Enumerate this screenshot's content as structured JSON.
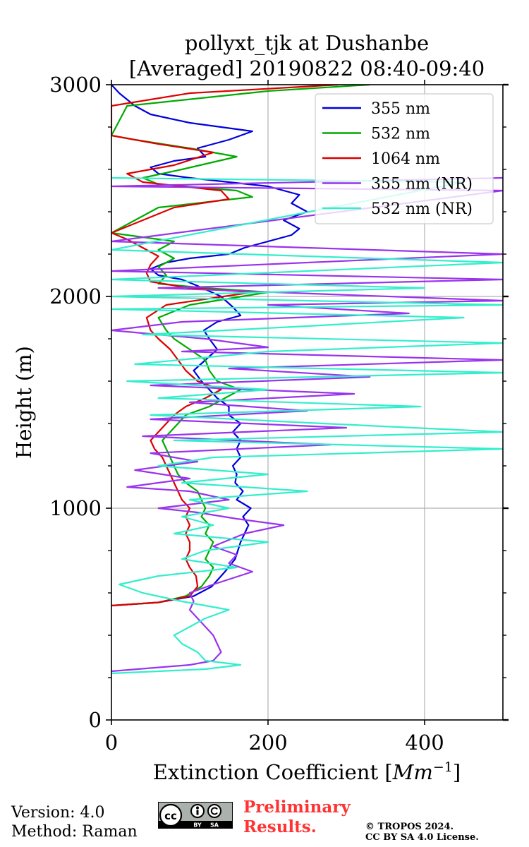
{
  "chart_data": {
    "type": "line",
    "title_line1": "pollyxt_tjk at Dushanbe",
    "title_line2": "[Averaged] 20190822 08:40-09:40",
    "xlabel": "Extinction Coefficient [",
    "xlabel_unit": "Mm",
    "xlabel_exp": "−1",
    "xlabel_close": "]",
    "ylabel": "Height (m)",
    "xlim": [
      0,
      500
    ],
    "ylim": [
      0,
      3000
    ],
    "xticks": [
      0,
      200,
      400
    ],
    "xtick_labels": [
      "0",
      "200",
      "400"
    ],
    "yticks": [
      0,
      1000,
      2000,
      3000
    ],
    "ytick_labels": [
      "0",
      "1000",
      "2000",
      "3000"
    ],
    "grid": true,
    "legend_position": "top-right",
    "series": [
      {
        "name": "355 nm",
        "color": "#0000dd",
        "points": [
          [
            0,
            540
          ],
          [
            60,
            555
          ],
          [
            105,
            585
          ],
          [
            128,
            630
          ],
          [
            145,
            700
          ],
          [
            158,
            760
          ],
          [
            165,
            840
          ],
          [
            170,
            880
          ],
          [
            175,
            920
          ],
          [
            168,
            960
          ],
          [
            178,
            1000
          ],
          [
            160,
            1040
          ],
          [
            168,
            1080
          ],
          [
            158,
            1120
          ],
          [
            160,
            1160
          ],
          [
            155,
            1200
          ],
          [
            165,
            1240
          ],
          [
            160,
            1280
          ],
          [
            165,
            1320
          ],
          [
            155,
            1360
          ],
          [
            165,
            1400
          ],
          [
            150,
            1440
          ],
          [
            150,
            1480
          ],
          [
            135,
            1520
          ],
          [
            125,
            1560
          ],
          [
            115,
            1600
          ],
          [
            105,
            1650
          ],
          [
            120,
            1700
          ],
          [
            135,
            1750
          ],
          [
            125,
            1800
          ],
          [
            118,
            1840
          ],
          [
            135,
            1880
          ],
          [
            165,
            1910
          ],
          [
            155,
            1950
          ],
          [
            140,
            2000
          ],
          [
            110,
            2050
          ],
          [
            90,
            2080
          ],
          [
            60,
            2100
          ],
          [
            50,
            2130
          ],
          [
            70,
            2160
          ],
          [
            100,
            2180
          ],
          [
            150,
            2200
          ],
          [
            170,
            2230
          ],
          [
            200,
            2260
          ],
          [
            230,
            2290
          ],
          [
            240,
            2320
          ],
          [
            220,
            2360
          ],
          [
            250,
            2400
          ],
          [
            230,
            2440
          ],
          [
            240,
            2480
          ],
          [
            200,
            2520
          ],
          [
            150,
            2540
          ],
          [
            100,
            2560
          ],
          [
            60,
            2580
          ],
          [
            50,
            2610
          ],
          [
            80,
            2640
          ],
          [
            120,
            2660
          ],
          [
            110,
            2700
          ],
          [
            150,
            2740
          ],
          [
            180,
            2780
          ],
          [
            100,
            2820
          ],
          [
            50,
            2860
          ],
          [
            30,
            2900
          ],
          [
            20,
            2930
          ],
          [
            10,
            2960
          ],
          [
            0,
            3000
          ]
        ]
      },
      {
        "name": "532 nm",
        "color": "#00aa00",
        "points": [
          [
            0,
            540
          ],
          [
            60,
            555
          ],
          [
            95,
            585
          ],
          [
            115,
            630
          ],
          [
            125,
            680
          ],
          [
            130,
            720
          ],
          [
            120,
            760
          ],
          [
            125,
            800
          ],
          [
            130,
            840
          ],
          [
            120,
            880
          ],
          [
            125,
            920
          ],
          [
            115,
            960
          ],
          [
            120,
            1000
          ],
          [
            115,
            1040
          ],
          [
            110,
            1080
          ],
          [
            95,
            1120
          ],
          [
            85,
            1160
          ],
          [
            80,
            1200
          ],
          [
            75,
            1240
          ],
          [
            70,
            1280
          ],
          [
            65,
            1320
          ],
          [
            75,
            1360
          ],
          [
            85,
            1400
          ],
          [
            95,
            1440
          ],
          [
            125,
            1480
          ],
          [
            145,
            1520
          ],
          [
            165,
            1560
          ],
          [
            135,
            1600
          ],
          [
            125,
            1650
          ],
          [
            120,
            1700
          ],
          [
            100,
            1750
          ],
          [
            80,
            1800
          ],
          [
            70,
            1840
          ],
          [
            60,
            1900
          ],
          [
            100,
            1960
          ],
          [
            200,
            2020
          ],
          [
            120,
            2040
          ],
          [
            60,
            2060
          ],
          [
            70,
            2100
          ],
          [
            60,
            2140
          ],
          [
            80,
            2180
          ],
          [
            60,
            2220
          ],
          [
            80,
            2260
          ],
          [
            20,
            2290
          ],
          [
            0,
            2300
          ],
          [
            60,
            2420
          ],
          [
            180,
            2470
          ],
          [
            160,
            2500
          ],
          [
            60,
            2530
          ],
          [
            40,
            2560
          ],
          [
            90,
            2600
          ],
          [
            160,
            2660
          ],
          [
            100,
            2700
          ],
          [
            30,
            2740
          ],
          [
            0,
            2760
          ],
          [
            20,
            2900
          ],
          [
            200,
            2970
          ],
          [
            330,
            3000
          ]
        ]
      },
      {
        "name": "1064 nm",
        "color": "#dd0000",
        "points": [
          [
            0,
            540
          ],
          [
            60,
            555
          ],
          [
            100,
            585
          ],
          [
            110,
            630
          ],
          [
            108,
            680
          ],
          [
            100,
            720
          ],
          [
            95,
            760
          ],
          [
            100,
            800
          ],
          [
            100,
            840
          ],
          [
            95,
            880
          ],
          [
            100,
            920
          ],
          [
            95,
            960
          ],
          [
            100,
            1000
          ],
          [
            90,
            1040
          ],
          [
            85,
            1080
          ],
          [
            80,
            1120
          ],
          [
            75,
            1160
          ],
          [
            70,
            1200
          ],
          [
            65,
            1240
          ],
          [
            55,
            1280
          ],
          [
            50,
            1320
          ],
          [
            60,
            1360
          ],
          [
            70,
            1400
          ],
          [
            80,
            1440
          ],
          [
            95,
            1480
          ],
          [
            120,
            1520
          ],
          [
            140,
            1560
          ],
          [
            110,
            1600
          ],
          [
            95,
            1650
          ],
          [
            85,
            1700
          ],
          [
            75,
            1750
          ],
          [
            60,
            1800
          ],
          [
            50,
            1840
          ],
          [
            45,
            1900
          ],
          [
            70,
            1960
          ],
          [
            180,
            2020
          ],
          [
            100,
            2040
          ],
          [
            50,
            2070
          ],
          [
            45,
            2110
          ],
          [
            50,
            2150
          ],
          [
            60,
            2190
          ],
          [
            40,
            2230
          ],
          [
            20,
            2270
          ],
          [
            0,
            2300
          ],
          [
            80,
            2420
          ],
          [
            150,
            2460
          ],
          [
            140,
            2500
          ],
          [
            40,
            2540
          ],
          [
            20,
            2580
          ],
          [
            80,
            2620
          ],
          [
            130,
            2680
          ],
          [
            60,
            2720
          ],
          [
            0,
            2760
          ],
          [
            0,
            2900
          ],
          [
            100,
            2960
          ],
          [
            290,
            3000
          ]
        ]
      },
      {
        "name": "355 nm (NR)",
        "color": "#9933ee",
        "points": [
          [
            0,
            230
          ],
          [
            100,
            260
          ],
          [
            130,
            280
          ],
          [
            140,
            320
          ],
          [
            135,
            360
          ],
          [
            130,
            400
          ],
          [
            120,
            440
          ],
          [
            110,
            480
          ],
          [
            100,
            520
          ],
          [
            105,
            560
          ],
          [
            100,
            600
          ],
          [
            130,
            640
          ],
          [
            180,
            700
          ],
          [
            150,
            740
          ],
          [
            160,
            780
          ],
          [
            130,
            820
          ],
          [
            170,
            880
          ],
          [
            220,
            920
          ],
          [
            160,
            950
          ],
          [
            110,
            980
          ],
          [
            60,
            1000
          ],
          [
            150,
            1040
          ],
          [
            100,
            1080
          ],
          [
            20,
            1100
          ],
          [
            100,
            1140
          ],
          [
            30,
            1180
          ],
          [
            110,
            1220
          ],
          [
            50,
            1260
          ],
          [
            280,
            1300
          ],
          [
            40,
            1340
          ],
          [
            300,
            1380
          ],
          [
            50,
            1420
          ],
          [
            250,
            1460
          ],
          [
            100,
            1500
          ],
          [
            310,
            1540
          ],
          [
            50,
            1580
          ],
          [
            330,
            1620
          ],
          [
            150,
            1660
          ],
          [
            500,
            1700
          ],
          [
            90,
            1740
          ],
          [
            200,
            1760
          ],
          [
            120,
            1800
          ],
          [
            0,
            1840
          ],
          [
            90,
            1880
          ],
          [
            380,
            1920
          ],
          [
            200,
            1960
          ],
          [
            500,
            1980
          ],
          [
            60,
            2040
          ],
          [
            500,
            2080
          ],
          [
            0,
            2120
          ],
          [
            500,
            2200
          ],
          [
            0,
            2260
          ],
          [
            500,
            2500
          ],
          [
            0,
            2520
          ],
          [
            500,
            2560
          ]
        ]
      },
      {
        "name": "532 nm (NR)",
        "color": "#33eecc",
        "points": [
          [
            0,
            220
          ],
          [
            120,
            240
          ],
          [
            165,
            260
          ],
          [
            120,
            280
          ],
          [
            110,
            320
          ],
          [
            90,
            360
          ],
          [
            80,
            400
          ],
          [
            100,
            440
          ],
          [
            120,
            480
          ],
          [
            150,
            520
          ],
          [
            90,
            560
          ],
          [
            40,
            600
          ],
          [
            10,
            640
          ],
          [
            60,
            680
          ],
          [
            160,
            720
          ],
          [
            90,
            760
          ],
          [
            120,
            800
          ],
          [
            200,
            840
          ],
          [
            80,
            880
          ],
          [
            130,
            920
          ],
          [
            90,
            960
          ],
          [
            150,
            1000
          ],
          [
            100,
            1040
          ],
          [
            250,
            1080
          ],
          [
            90,
            1120
          ],
          [
            200,
            1160
          ],
          [
            60,
            1200
          ],
          [
            130,
            1240
          ],
          [
            500,
            1280
          ],
          [
            80,
            1320
          ],
          [
            500,
            1360
          ],
          [
            270,
            1400
          ],
          [
            50,
            1440
          ],
          [
            395,
            1480
          ],
          [
            60,
            1520
          ],
          [
            200,
            1560
          ],
          [
            20,
            1600
          ],
          [
            500,
            1640
          ],
          [
            30,
            1680
          ],
          [
            200,
            1740
          ],
          [
            500,
            1780
          ],
          [
            40,
            1820
          ],
          [
            250,
            1860
          ],
          [
            450,
            1900
          ],
          [
            0,
            1940
          ],
          [
            500,
            1960
          ],
          [
            0,
            2000
          ],
          [
            400,
            2040
          ],
          [
            0,
            2080
          ],
          [
            500,
            2160
          ],
          [
            0,
            2220
          ],
          [
            450,
            2540
          ],
          [
            0,
            2560
          ]
        ]
      }
    ]
  },
  "footer": {
    "version": "Version: 4.0",
    "method": "Method: Raman",
    "badge_cc": "cc",
    "badge_by": "BY",
    "badge_sa": "SA",
    "preliminary_line1": "Preliminary",
    "preliminary_line2": "Results.",
    "copyright_line1": "© TROPOS 2024.",
    "copyright_line2": "CC BY SA 4.0 License."
  }
}
